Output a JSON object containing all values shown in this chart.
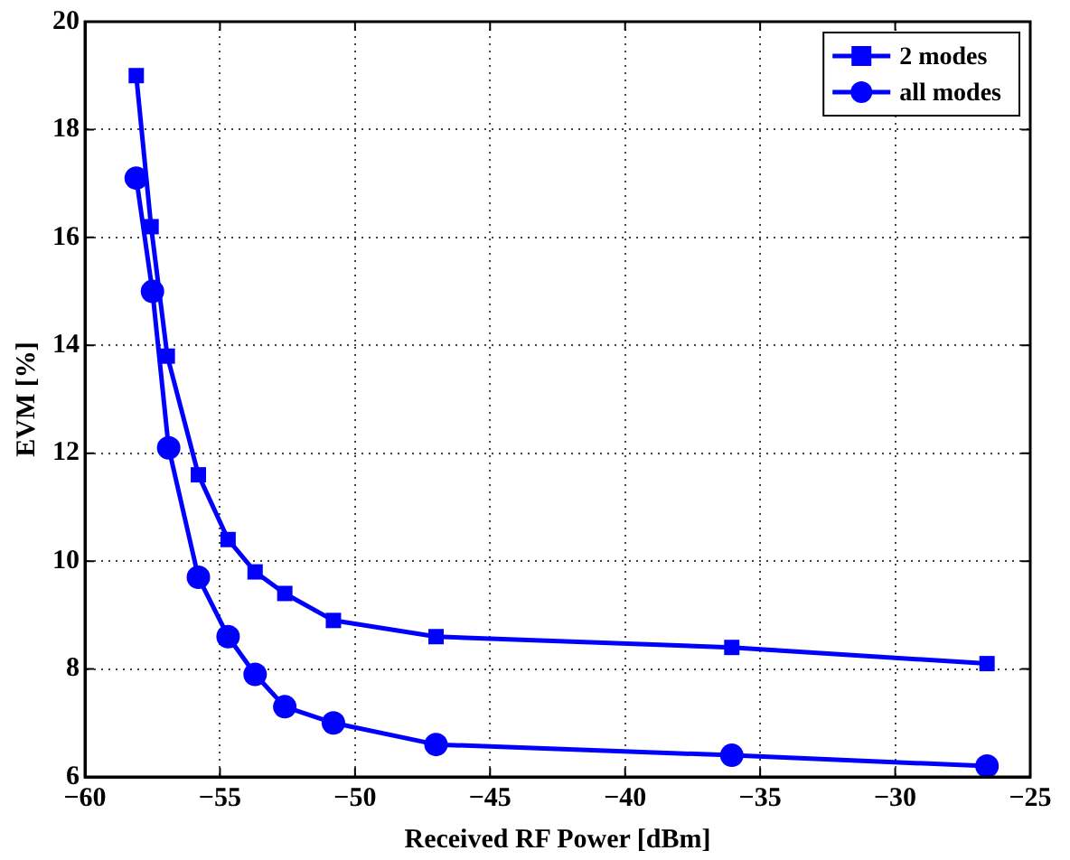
{
  "chart_data": {
    "type": "line",
    "xlabel": "Received RF Power [dBm]",
    "ylabel": "EVM [%]",
    "xlim": [
      -60,
      -25
    ],
    "xticks": [
      {
        "value": -60,
        "label": "−60"
      },
      {
        "value": -55,
        "label": "−55"
      },
      {
        "value": -50,
        "label": "−50"
      },
      {
        "value": -45,
        "label": "−45"
      },
      {
        "value": -40,
        "label": "−40"
      },
      {
        "value": -35,
        "label": "−35"
      },
      {
        "value": -30,
        "label": "−30"
      },
      {
        "value": -25,
        "label": "−25"
      }
    ],
    "ylim": [
      6,
      20
    ],
    "yticks": [
      6,
      8,
      10,
      12,
      14,
      16,
      18,
      20
    ],
    "grid": true,
    "legend": "top right",
    "line_style": "solid",
    "series": [
      {
        "name": "2 modes",
        "color": "#0000ff",
        "marker": "square",
        "x": [
          -58.1,
          -57.55,
          -56.95,
          -55.8,
          -54.7,
          -53.7,
          -52.6,
          -50.8,
          -47.0,
          -36.05,
          -26.6
        ],
        "values": [
          19.0,
          16.2,
          13.8,
          11.6,
          10.4,
          9.8,
          9.4,
          8.9,
          8.6,
          8.4,
          8.1
        ]
      },
      {
        "name": "all modes",
        "color": "#0000ff",
        "marker": "circle",
        "x": [
          -58.1,
          -57.5,
          -56.9,
          -55.8,
          -54.7,
          -53.7,
          -52.6,
          -50.8,
          -47.0,
          -36.05,
          -26.6
        ],
        "values": [
          17.1,
          15.0,
          12.1,
          9.7,
          8.6,
          7.9,
          7.3,
          7.0,
          6.6,
          6.4,
          6.2
        ]
      }
    ]
  }
}
